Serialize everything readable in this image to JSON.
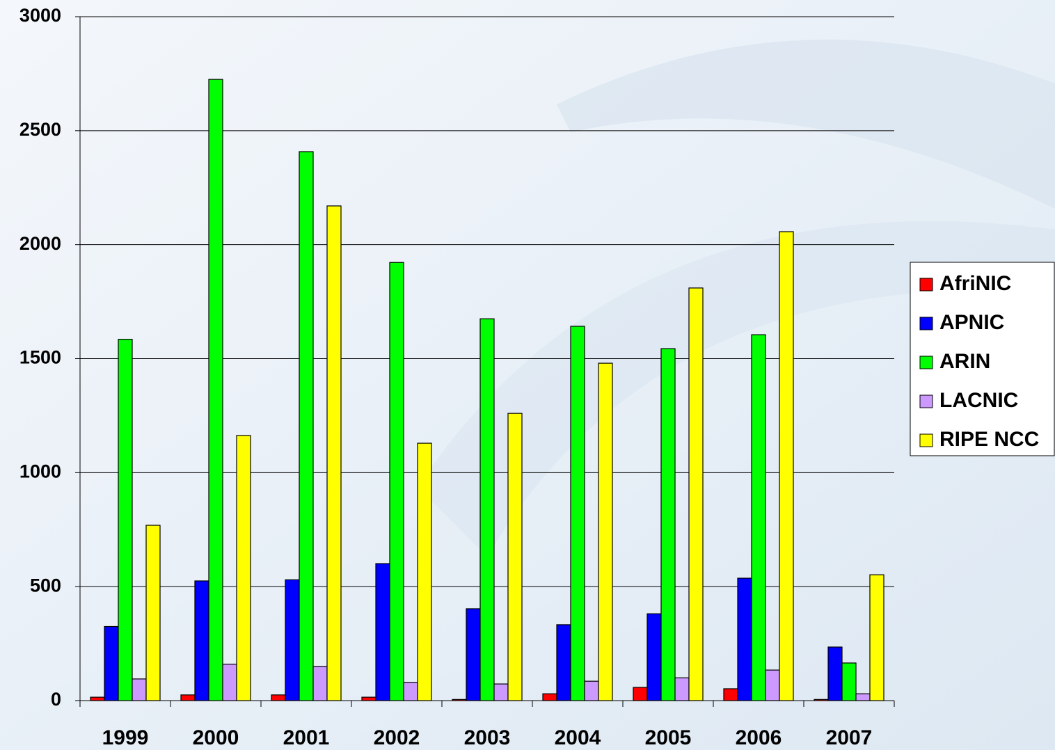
{
  "chart_data": {
    "type": "bar",
    "categories": [
      "1999",
      "2000",
      "2001",
      "2002",
      "2003",
      "2004",
      "2005",
      "2006",
      "2007"
    ],
    "series": [
      {
        "name": "AfriNIC",
        "color": "#ff0000",
        "values": [
          15,
          25,
          25,
          15,
          5,
          30,
          58,
          52,
          5
        ]
      },
      {
        "name": "APNIC",
        "color": "#0000ff",
        "values": [
          325,
          525,
          530,
          601,
          403,
          333,
          381,
          537,
          235
        ]
      },
      {
        "name": "ARIN",
        "color": "#00ff00",
        "values": [
          1585,
          2725,
          2408,
          1922,
          1675,
          1642,
          1544,
          1605,
          165
        ]
      },
      {
        "name": "LACNIC",
        "color": "#cc99ff",
        "values": [
          95,
          160,
          150,
          80,
          73,
          85,
          100,
          134,
          30
        ]
      },
      {
        "name": "RIPE NCC",
        "color": "#ffff00",
        "values": [
          769,
          1163,
          2170,
          1129,
          1260,
          1480,
          1810,
          2057,
          552
        ]
      }
    ],
    "ylim": [
      0,
      3000
    ],
    "yticks": [
      0,
      500,
      1000,
      1500,
      2000,
      2500,
      3000
    ],
    "grid": true,
    "legend": "right"
  }
}
